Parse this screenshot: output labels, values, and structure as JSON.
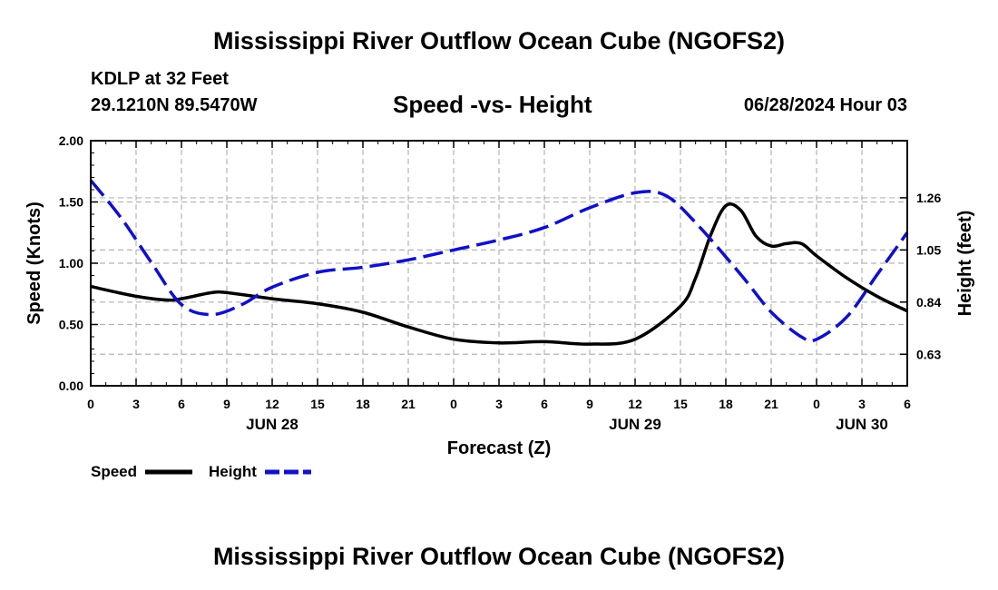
{
  "header": {
    "main_title": "Mississippi River Outflow Ocean Cube (NGOFS2)",
    "station": "KDLP at 32 Feet",
    "coords": "29.1210N  89.5470W",
    "subtitle": "Speed -vs- Height",
    "timestamp": "06/28/2024 Hour 03"
  },
  "footer": {
    "title": "Mississippi River Outflow Ocean Cube (NGOFS2)"
  },
  "chart_data": {
    "type": "line",
    "title": "Speed -vs- Height",
    "xlabel": "Forecast (Z)",
    "ylabel": "Speed (Knots)",
    "y2label": "Height (feet)",
    "xlim": [
      0,
      54
    ],
    "ylim": [
      0,
      2.0
    ],
    "y2lim": [
      0.503,
      1.49
    ],
    "x_ticks": [
      0,
      3,
      6,
      9,
      12,
      15,
      18,
      21,
      24,
      27,
      30,
      33,
      36,
      39,
      42,
      45,
      48,
      51,
      54
    ],
    "x_tick_labels": [
      "0",
      "3",
      "6",
      "9",
      "12",
      "15",
      "18",
      "21",
      "0",
      "3",
      "6",
      "9",
      "12",
      "15",
      "18",
      "21",
      "0",
      "3",
      "6"
    ],
    "date_labels": [
      {
        "x": 12,
        "label": "JUN 28"
      },
      {
        "x": 36,
        "label": "JUN 29"
      },
      {
        "x": 51,
        "label": "JUN 30"
      }
    ],
    "y_ticks": [
      0,
      0.5,
      1.0,
      1.5,
      2.0
    ],
    "y_tick_labels": [
      "0.00",
      "0.50",
      "1.00",
      "1.50",
      "2.00"
    ],
    "y2_ticks": [
      0.63,
      0.84,
      1.05,
      1.26
    ],
    "y2_tick_labels": [
      "0.63",
      "0.84",
      "1.05",
      "1.26"
    ],
    "grid": true,
    "series": [
      {
        "name": "Speed",
        "axis": "left",
        "color": "#000000",
        "dash": "solid",
        "x": [
          0,
          3,
          5,
          6,
          8,
          9,
          12,
          15,
          18,
          21,
          24,
          27,
          30,
          33,
          36,
          39,
          40,
          41,
          42,
          43,
          44,
          45,
          46,
          47,
          48,
          50,
          52,
          54
        ],
        "values": [
          0.81,
          0.73,
          0.7,
          0.71,
          0.76,
          0.76,
          0.71,
          0.67,
          0.6,
          0.48,
          0.38,
          0.35,
          0.36,
          0.34,
          0.38,
          0.65,
          0.88,
          1.23,
          1.47,
          1.43,
          1.22,
          1.14,
          1.16,
          1.16,
          1.06,
          0.88,
          0.73,
          0.61
        ]
      },
      {
        "name": "Height",
        "axis": "right",
        "color": "#1010c8",
        "dash": "dashed",
        "x": [
          0,
          2,
          4,
          6,
          8,
          10,
          12,
          15,
          18,
          21,
          24,
          27,
          30,
          33,
          36,
          38,
          40,
          43,
          45,
          47,
          48,
          50,
          52,
          54
        ],
        "values": [
          1.33,
          1.18,
          1.0,
          0.83,
          0.79,
          0.83,
          0.9,
          0.96,
          0.98,
          1.01,
          1.05,
          1.09,
          1.14,
          1.22,
          1.28,
          1.27,
          1.16,
          0.95,
          0.8,
          0.7,
          0.69,
          0.78,
          0.95,
          1.12
        ]
      }
    ],
    "legend": [
      {
        "label": "Speed",
        "color": "#000000",
        "dash": "solid"
      },
      {
        "label": "Height",
        "color": "#1010c8",
        "dash": "dashed"
      }
    ]
  }
}
